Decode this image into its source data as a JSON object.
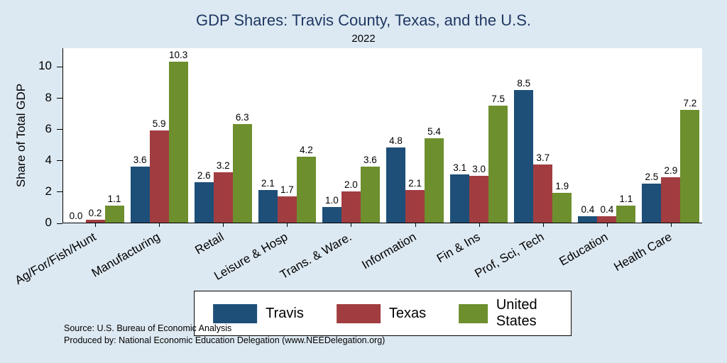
{
  "chart_data": {
    "type": "bar",
    "title": "GDP Shares: Travis County, Texas, and the U.S.",
    "subtitle": "2022",
    "xlabel": "",
    "ylabel": "Share of Total GDP",
    "ylim": [
      0,
      11.2
    ],
    "yticks": [
      0,
      2,
      4,
      6,
      8,
      10
    ],
    "grid": false,
    "legend_position": "bottom",
    "value_labels": true,
    "categories": [
      "Ag/For/Fish/Hunt",
      "Manufacturing",
      "Retail",
      "Leisure & Hosp",
      "Trans. & Ware.",
      "Information",
      "Fin & Ins",
      "Prof, Sci, Tech",
      "Education",
      "Health Care"
    ],
    "series": [
      {
        "name": "Travis",
        "color": "#1d4f78",
        "values": [
          0.0,
          3.6,
          2.6,
          2.1,
          1.0,
          4.8,
          3.1,
          8.5,
          0.4,
          2.5
        ]
      },
      {
        "name": "Texas",
        "color": "#a13d40",
        "values": [
          0.2,
          5.9,
          3.2,
          1.7,
          2.0,
          2.1,
          3.0,
          3.7,
          0.4,
          2.9
        ]
      },
      {
        "name": "United States",
        "color": "#6d8f2d",
        "values": [
          1.1,
          10.3,
          6.3,
          4.2,
          3.6,
          5.4,
          7.5,
          1.9,
          1.1,
          7.2
        ]
      }
    ]
  },
  "footer": {
    "source": "Source: U.S. Bureau of Economic Analysis",
    "produced_by": "Produced by: National Economic Education Delegation (www.NEEDelegation.org)"
  },
  "colors": {
    "canvas_background": "#dde9f2",
    "plot_background": "#ffffff",
    "title_color": "#1f3864",
    "axis_color": "#000000",
    "legend_border": "#000000"
  }
}
